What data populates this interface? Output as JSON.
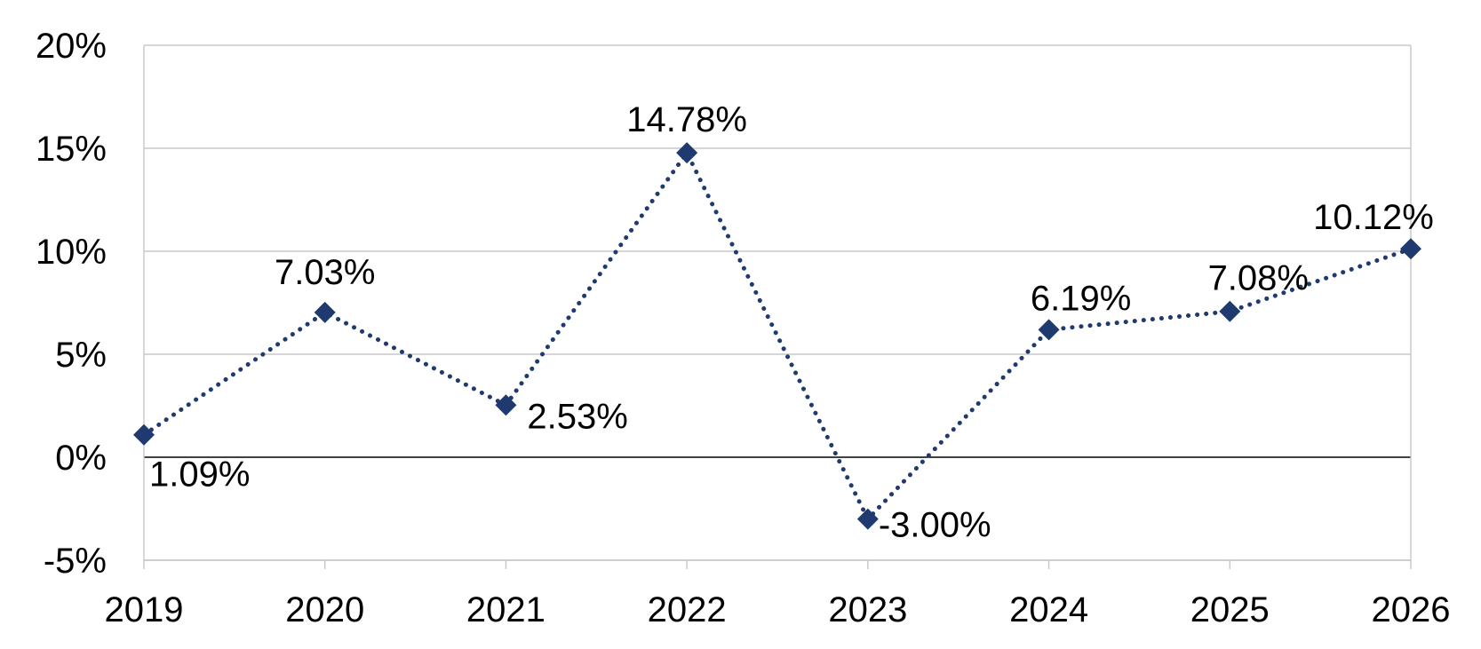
{
  "chart_data": {
    "type": "line",
    "title": "",
    "xlabel": "",
    "ylabel": "",
    "categories": [
      "2019",
      "2020",
      "2021",
      "2022",
      "2023",
      "2024",
      "2025",
      "2026"
    ],
    "series": [
      {
        "values": [
          1.09,
          7.03,
          2.53,
          14.78,
          -3.0,
          6.19,
          7.08,
          10.12
        ],
        "labels": [
          "1.09%",
          "7.03%",
          "2.53%",
          "14.78%",
          "-3.00%",
          "6.19%",
          "7.08%",
          "10.12%"
        ],
        "color": "#1f3a6e",
        "line_style": "dotted",
        "marker": "diamond"
      }
    ],
    "ylim": [
      -5,
      20
    ],
    "y_ticks": [
      {
        "value": 20,
        "label": "20%"
      },
      {
        "value": 15,
        "label": "15%"
      },
      {
        "value": 10,
        "label": "10%"
      },
      {
        "value": 5,
        "label": "5%"
      },
      {
        "value": 0,
        "label": "0%"
      },
      {
        "value": -5,
        "label": "-5%"
      }
    ],
    "grid": true,
    "legend": "none"
  }
}
